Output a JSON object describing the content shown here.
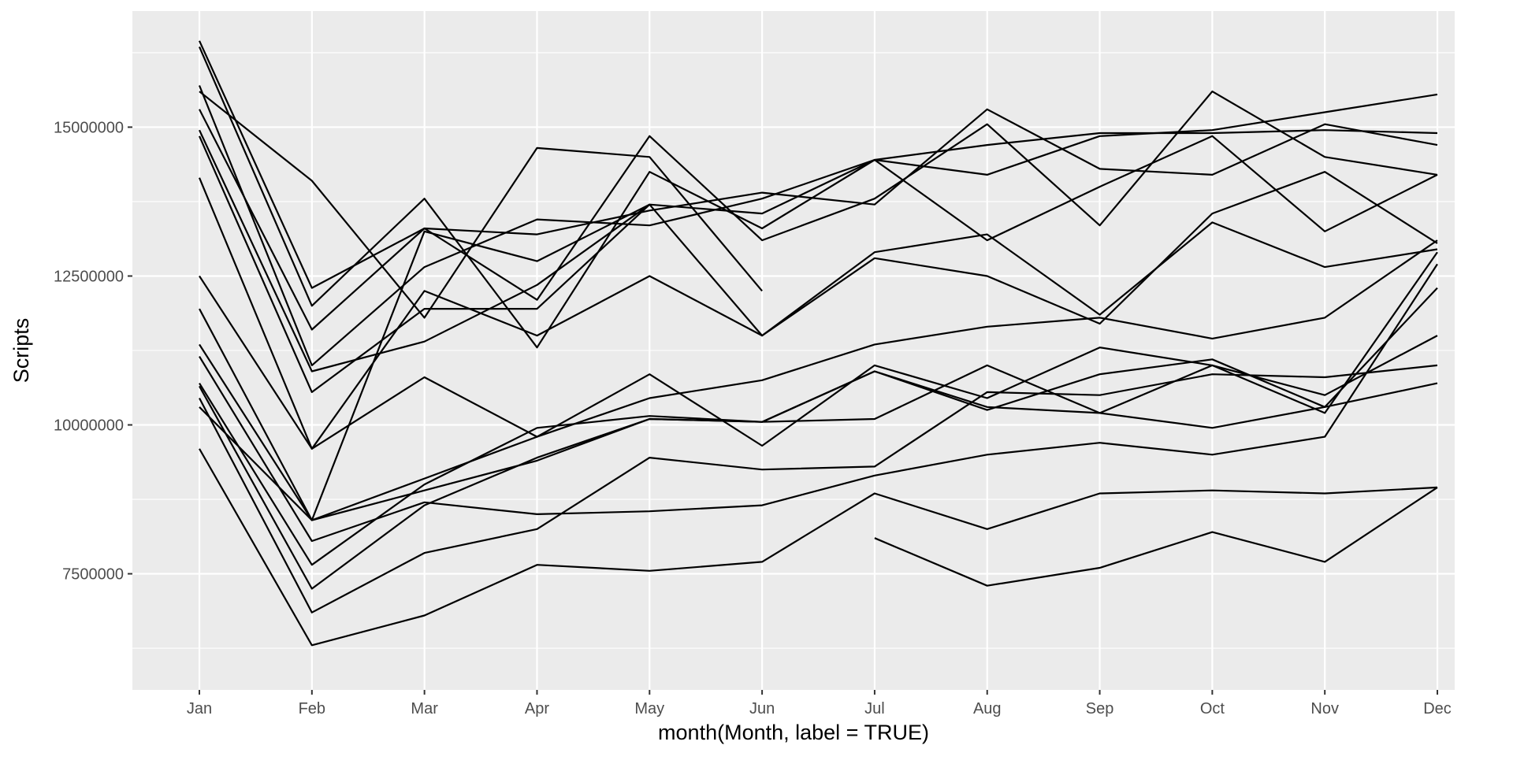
{
  "chart_data": {
    "type": "line",
    "title": "",
    "xlabel": "month(Month, label = TRUE)",
    "ylabel": "Scripts",
    "categories": [
      "Jan",
      "Feb",
      "Mar",
      "Apr",
      "May",
      "Jun",
      "Jul",
      "Aug",
      "Sep",
      "Oct",
      "Nov",
      "Dec"
    ],
    "ylim": [
      5550000,
      16950000
    ],
    "yticks": [
      7500000,
      10000000,
      12500000,
      15000000
    ],
    "ytick_labels": [
      "7500000",
      "10000000",
      "12500000",
      "15000000"
    ],
    "grid": true,
    "legend": "none",
    "colors": {
      "panel": "#ebebeb",
      "grid": "#ffffff",
      "line": "#000000",
      "tick_text": "#4d4d4d",
      "axis_title": "#000000"
    },
    "series": [
      {
        "values": [
          16450000,
          12300000,
          13300000,
          13200000,
          13600000,
          13900000,
          13700000,
          15300000,
          14300000,
          14200000,
          15050000,
          14700000
        ]
      },
      {
        "values": [
          16350000,
          12000000,
          13800000,
          11300000,
          14250000,
          13300000,
          14450000,
          13100000,
          14000000,
          14850000,
          13250000,
          14200000
        ]
      },
      {
        "values": [
          15700000,
          11000000,
          12650000,
          13450000,
          13350000,
          13800000,
          14450000,
          14200000,
          14850000,
          14950000,
          15250000,
          15550000
        ]
      },
      {
        "values": [
          15600000,
          14100000,
          11800000,
          14650000,
          14500000,
          12250000,
          null,
          null,
          null,
          null,
          null,
          null
        ]
      },
      {
        "values": [
          15300000,
          11600000,
          13300000,
          12100000,
          14850000,
          13100000,
          13800000,
          15050000,
          13350000,
          15600000,
          14500000,
          14200000
        ]
      },
      {
        "values": [
          14950000,
          10900000,
          11400000,
          12350000,
          13700000,
          13550000,
          14450000,
          14700000,
          14900000,
          14900000,
          14950000,
          14900000
        ]
      },
      {
        "values": [
          14850000,
          10550000,
          11950000,
          11950000,
          13700000,
          null,
          null,
          null,
          null,
          null,
          null,
          null
        ]
      },
      {
        "values": [
          14150000,
          9600000,
          12250000,
          11500000,
          12500000,
          11500000,
          12800000,
          12500000,
          11700000,
          13550000,
          14250000,
          13050000
        ]
      },
      {
        "values": [
          12500000,
          9600000,
          10800000,
          9800000,
          10850000,
          9650000,
          11000000,
          10450000,
          11300000,
          11000000,
          10500000,
          11500000
        ]
      },
      {
        "values": [
          11950000,
          8400000,
          13250000,
          12750000,
          13700000,
          11500000,
          12900000,
          13200000,
          11850000,
          13400000,
          12650000,
          12950000
        ]
      },
      {
        "values": [
          11350000,
          8400000,
          9100000,
          9800000,
          10450000,
          10750000,
          11350000,
          11650000,
          11800000,
          11450000,
          11800000,
          13100000
        ]
      },
      {
        "values": [
          11150000,
          8050000,
          8700000,
          8500000,
          8550000,
          8650000,
          9150000,
          9500000,
          9700000,
          9500000,
          9800000,
          12700000
        ]
      },
      {
        "values": [
          10700000,
          7650000,
          9000000,
          9950000,
          10150000,
          10050000,
          10100000,
          11000000,
          10200000,
          11000000,
          10200000,
          12900000
        ]
      },
      {
        "values": [
          10650000,
          7250000,
          8650000,
          9450000,
          10100000,
          10050000,
          10900000,
          10250000,
          10850000,
          11100000,
          10300000,
          12300000
        ]
      },
      {
        "values": [
          10450000,
          6850000,
          7850000,
          8250000,
          9450000,
          9250000,
          9300000,
          10550000,
          10500000,
          10850000,
          10800000,
          11000000
        ]
      },
      {
        "values": [
          10300000,
          8400000,
          8900000,
          9400000,
          10100000,
          10050000,
          10900000,
          10300000,
          10200000,
          9950000,
          10300000,
          10700000
        ]
      },
      {
        "values": [
          9600000,
          6300000,
          6800000,
          7650000,
          7550000,
          7700000,
          8850000,
          8250000,
          8850000,
          8900000,
          8850000,
          8950000
        ]
      },
      {
        "values": [
          null,
          null,
          null,
          null,
          null,
          null,
          8100000,
          7300000,
          7600000,
          8200000,
          7700000,
          8950000
        ]
      }
    ]
  }
}
